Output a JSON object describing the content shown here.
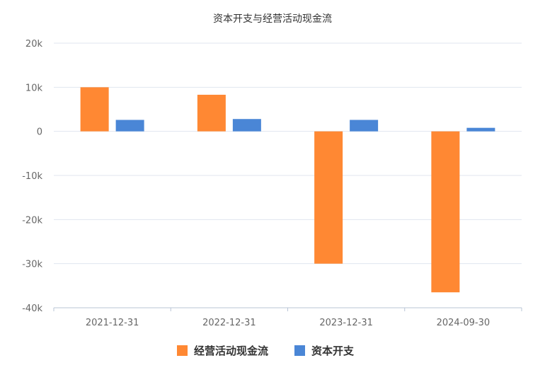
{
  "chart_data": {
    "type": "bar",
    "title": "资本开支与经营活动现金流",
    "categories": [
      "2021-12-31",
      "2022-12-31",
      "2023-12-31",
      "2024-09-30"
    ],
    "series": [
      {
        "name": "经营活动现金流",
        "color": "#ff8833",
        "values": [
          10000,
          8300,
          -30000,
          -36500
        ]
      },
      {
        "name": "资本开支",
        "color": "#4a86d6",
        "values": [
          2600,
          2800,
          2600,
          800
        ]
      }
    ],
    "ylim": [
      -40000,
      20000
    ],
    "yticks": [
      20000,
      10000,
      0,
      -10000,
      -20000,
      -30000,
      -40000
    ],
    "ytick_labels": [
      "20k",
      "10k",
      "0",
      "-10k",
      "-20k",
      "-30k",
      "-40k"
    ],
    "grid": true,
    "legend_position": "bottom"
  }
}
